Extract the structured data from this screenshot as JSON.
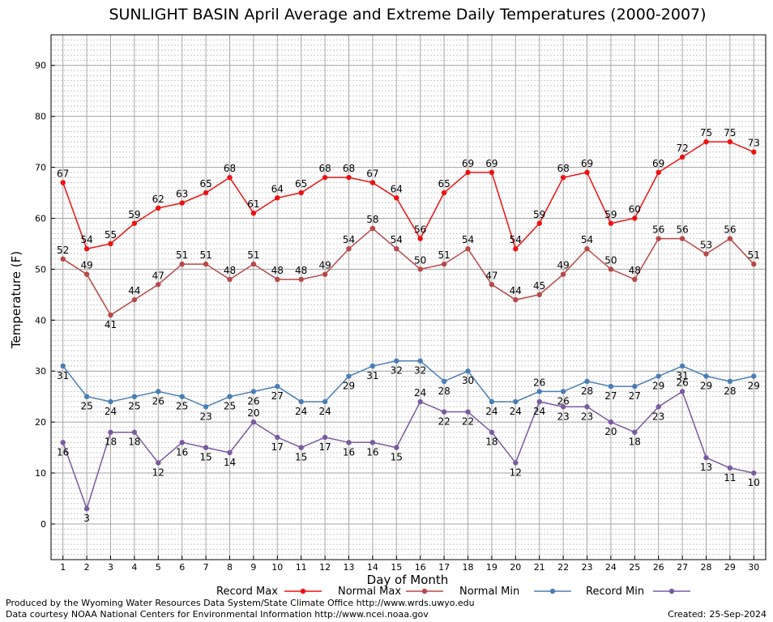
{
  "title": "SUNLIGHT BASIN April Average and Extreme Daily Temperatures (2000-2007)",
  "credits": {
    "line1": "Produced by the Wyoming Water Resources Data System/State Climate Office http://www.wrds.uwyo.edu",
    "line2": "Data courtesy NOAA National Centers for Environmental Information http://www.ncei.noaa.gov",
    "created_label": "Created:",
    "created_date": "25-Sep-2024"
  },
  "chart_data": {
    "type": "line",
    "title": "SUNLIGHT BASIN April Average and Extreme Daily Temperatures (2000-2007)",
    "xlabel": "Day of Month",
    "ylabel": "Temperature (F)",
    "x": [
      1,
      2,
      3,
      4,
      5,
      6,
      7,
      8,
      9,
      10,
      11,
      12,
      13,
      14,
      15,
      16,
      17,
      18,
      19,
      20,
      21,
      22,
      23,
      24,
      25,
      26,
      27,
      28,
      29,
      30
    ],
    "xlim": [
      0.5,
      30.5
    ],
    "ylim": [
      -7,
      96
    ],
    "yticks": [
      0,
      10,
      20,
      30,
      40,
      50,
      60,
      70,
      80,
      90
    ],
    "grid": true,
    "legend_position": "bottom",
    "series": [
      {
        "name": "Record Max",
        "color": "#ee1111",
        "values": [
          67,
          54,
          55,
          59,
          62,
          63,
          65,
          68,
          61,
          64,
          65,
          68,
          68,
          67,
          64,
          56,
          65,
          69,
          69,
          54,
          59,
          68,
          69,
          59,
          60,
          69,
          72,
          75,
          75,
          73
        ]
      },
      {
        "name": "Normal Max",
        "color": "#b84848",
        "values": [
          52,
          49,
          41,
          44,
          47,
          51,
          51,
          48,
          51,
          48,
          48,
          49,
          54,
          58,
          54,
          50,
          51,
          54,
          47,
          44,
          45,
          49,
          54,
          50,
          48,
          56,
          56,
          53,
          56,
          51
        ]
      },
      {
        "name": "Normal Min",
        "color": "#4a7eb4",
        "values": [
          31,
          25,
          24,
          25,
          26,
          25,
          23,
          25,
          26,
          27,
          24,
          24,
          29,
          31,
          32,
          32,
          28,
          30,
          24,
          24,
          26,
          26,
          28,
          27,
          27,
          29,
          31,
          29,
          28,
          29
        ]
      },
      {
        "name": "Record Min",
        "color": "#7a5aa0",
        "values": [
          16,
          3,
          18,
          18,
          12,
          16,
          15,
          14,
          20,
          17,
          15,
          17,
          16,
          16,
          15,
          24,
          22,
          22,
          18,
          12,
          24,
          23,
          23,
          20,
          18,
          23,
          26,
          13,
          11,
          10
        ]
      }
    ]
  }
}
